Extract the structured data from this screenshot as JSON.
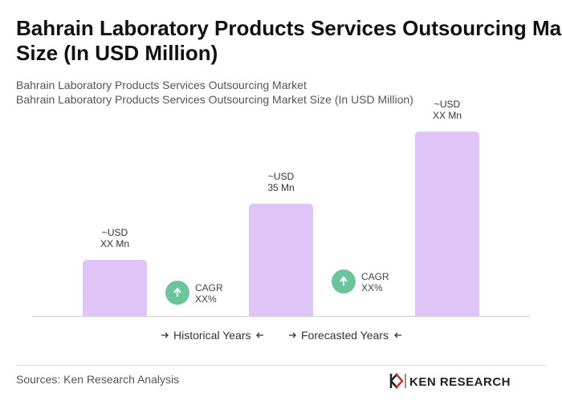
{
  "chart_data": {
    "type": "bar",
    "title": "Bahrain Laboratory Products Services Outsourcing Market Size (In USD Million)",
    "subtitle": [
      "Bahrain Laboratory Products Services Outsourcing Market",
      "Bahrain Laboratory Products Services Outsourcing Market Size (In USD Million)"
    ],
    "categories": [
      null,
      null,
      null
    ],
    "values": [
      17.5,
      35,
      57.5
    ],
    "value_labels": [
      "~USD\nXX Mn",
      "~USD\n35 Mn",
      "~USD\nXX Mn"
    ],
    "color": "#dfc4f7",
    "annotations": [
      "CAGR\nXX%",
      "CAGR\nXX%"
    ],
    "periods": [
      "Historical Years",
      "Forecasted Years"
    ],
    "source": "Sources: Ken Research Analysis",
    "brand": "KEN RESEARCH"
  }
}
